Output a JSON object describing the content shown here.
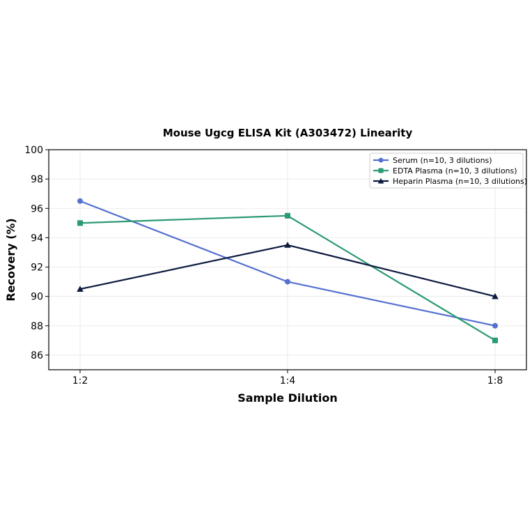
{
  "chart_data": {
    "type": "line",
    "title": "Mouse Ugcg ELISA Kit (A303472) Linearity",
    "xlabel": "Sample Dilution",
    "ylabel": "Recovery (%)",
    "categories": [
      "1:2",
      "1:4",
      "1:8"
    ],
    "ylim": [
      85,
      100
    ],
    "yticks": [
      86,
      88,
      90,
      92,
      94,
      96,
      98,
      100
    ],
    "grid": true,
    "legend_position": "top-right",
    "series": [
      {
        "name": "Serum (n=10, 3 dilutions)",
        "values": [
          96.5,
          91.0,
          88.0
        ],
        "color": "#5470d0",
        "marker": "circle"
      },
      {
        "name": "EDTA Plasma (n=10, 3 dilutions)",
        "values": [
          95.0,
          95.5,
          87.0
        ],
        "color": "#2a9a72",
        "marker": "square"
      },
      {
        "name": "Heparin Plasma (n=10, 3 dilutions)",
        "values": [
          90.5,
          93.5,
          90.0
        ],
        "color": "#0d1a3f",
        "marker": "triangle"
      }
    ]
  }
}
